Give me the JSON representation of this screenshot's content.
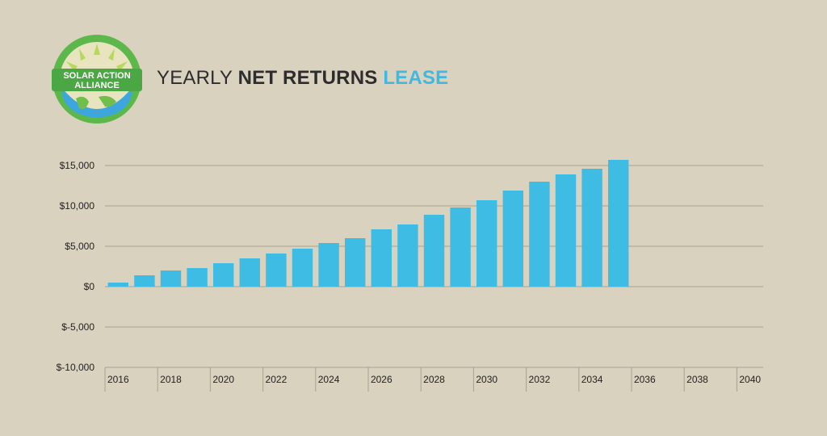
{
  "logo": {
    "line1": "SOLAR ACTION",
    "line2": "ALLIANCE"
  },
  "title": {
    "part1": "YEARLY ",
    "part2": "NET RETURNS",
    "part3": " LEASE"
  },
  "colors": {
    "bar": "#3fbce4",
    "accent": "#3fb8e3",
    "grid": "#a9a290",
    "background": "#d9d2bf"
  },
  "chart_data": {
    "type": "bar",
    "title": "YEARLY NET RETURNS LEASE",
    "xlabel": "",
    "ylabel": "",
    "ylim": [
      -10000,
      15000
    ],
    "xlim": [
      2016,
      2040
    ],
    "grid": true,
    "y_ticks": [
      {
        "value": 15000,
        "label": "$15,000"
      },
      {
        "value": 10000,
        "label": "$10,000"
      },
      {
        "value": 5000,
        "label": "$5,000"
      },
      {
        "value": 0,
        "label": "$0"
      },
      {
        "value": -5000,
        "label": "$-5,000"
      },
      {
        "value": -10000,
        "label": "$-10,000"
      }
    ],
    "x_ticks": [
      "2016",
      "2018",
      "2020",
      "2022",
      "2024",
      "2026",
      "2028",
      "2030",
      "2032",
      "2034",
      "2036",
      "2038",
      "2040"
    ],
    "categories": [
      "2016",
      "2017",
      "2018",
      "2019",
      "2020",
      "2021",
      "2022",
      "2023",
      "2024",
      "2025",
      "2026",
      "2027",
      "2028",
      "2029",
      "2030",
      "2031",
      "2032",
      "2033",
      "2034",
      "2035",
      "2036",
      "2037",
      "2038",
      "2039",
      "2040"
    ],
    "values": [
      500,
      1400,
      2000,
      2300,
      2900,
      3500,
      4100,
      4700,
      5400,
      6000,
      7100,
      7700,
      8900,
      9800,
      10700,
      11900,
      13000,
      13900,
      14600,
      15700,
      null,
      null,
      null,
      null,
      null
    ]
  }
}
